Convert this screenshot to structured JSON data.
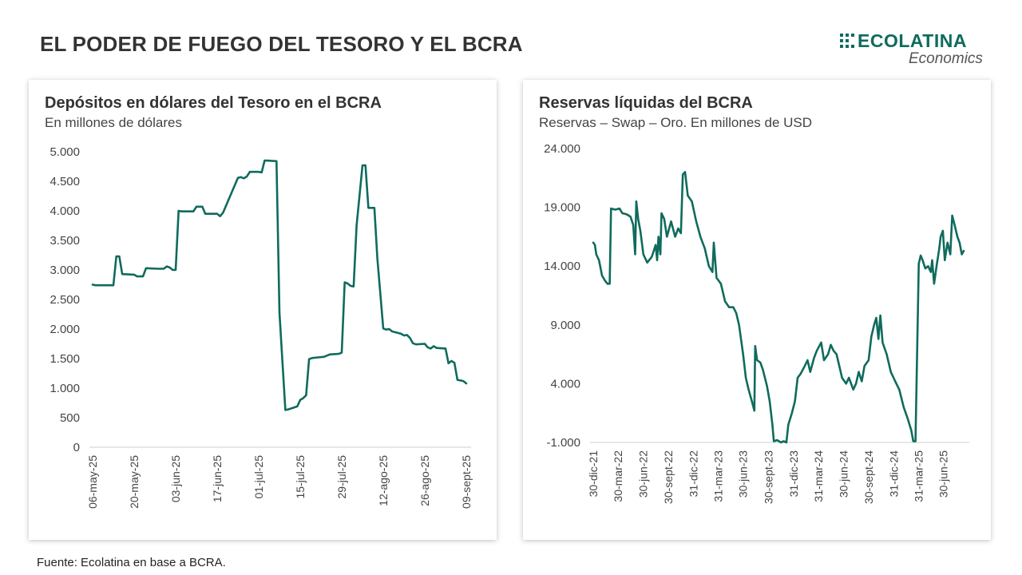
{
  "page": {
    "title": "EL PODER DE FUEGO DEL TESORO Y EL BCRA",
    "source": "Fuente: Ecolatina en base a BCRA."
  },
  "logo": {
    "name": "ECOLATINA",
    "tagline": "Economics",
    "color": "#0f6b5d"
  },
  "chart_data": [
    {
      "type": "line",
      "title": "Depósitos en dólares del Tesoro en el BCRA",
      "subtitle": "En millones de dólares",
      "color": "#0f6b5d",
      "ylim": [
        0,
        5000
      ],
      "yticks": [
        0,
        500,
        1000,
        1500,
        2000,
        2500,
        3000,
        3500,
        4000,
        4500,
        5000
      ],
      "ytick_labels": [
        "0",
        "500",
        "1.000",
        "1.500",
        "2.000",
        "2.500",
        "3.000",
        "3.500",
        "4.000",
        "4.500",
        "5.000"
      ],
      "x_start": "2025-05-06",
      "x_end": "2025-09-09",
      "xticks": [
        "2025-05-06",
        "2025-05-20",
        "2025-06-03",
        "2025-06-17",
        "2025-07-01",
        "2025-07-15",
        "2025-07-29",
        "2025-08-12",
        "2025-08-26",
        "2025-09-09"
      ],
      "xtick_labels": [
        "06-may-25",
        "20-may-25",
        "03-jun-25",
        "17-jun-25",
        "01-jul-25",
        "15-jul-25",
        "29-jul-25",
        "12-ago-25",
        "26-ago-25",
        "09-sept-25"
      ],
      "grid": false,
      "series": [
        {
          "points": [
            [
              "2025-05-06",
              2750
            ],
            [
              "2025-05-07",
              2740
            ],
            [
              "2025-05-13",
              2740
            ],
            [
              "2025-05-14",
              3230
            ],
            [
              "2025-05-15",
              3230
            ],
            [
              "2025-05-16",
              2930
            ],
            [
              "2025-05-20",
              2920
            ],
            [
              "2025-05-21",
              2890
            ],
            [
              "2025-05-23",
              2890
            ],
            [
              "2025-05-24",
              3030
            ],
            [
              "2025-05-28",
              3020
            ],
            [
              "2025-05-30",
              3020
            ],
            [
              "2025-05-31",
              3060
            ],
            [
              "2025-06-01",
              3040
            ],
            [
              "2025-06-02",
              3000
            ],
            [
              "2025-06-03",
              3000
            ],
            [
              "2025-06-04",
              4000
            ],
            [
              "2025-06-05",
              3990
            ],
            [
              "2025-06-09",
              3990
            ],
            [
              "2025-06-10",
              4070
            ],
            [
              "2025-06-12",
              4070
            ],
            [
              "2025-06-13",
              3950
            ],
            [
              "2025-06-17",
              3950
            ],
            [
              "2025-06-18",
              3910
            ],
            [
              "2025-06-19",
              3970
            ],
            [
              "2025-06-24",
              4560
            ],
            [
              "2025-06-25",
              4570
            ],
            [
              "2025-06-26",
              4550
            ],
            [
              "2025-06-27",
              4580
            ],
            [
              "2025-06-28",
              4660
            ],
            [
              "2025-07-01",
              4660
            ],
            [
              "2025-07-02",
              4650
            ],
            [
              "2025-07-03",
              4850
            ],
            [
              "2025-07-04",
              4850
            ],
            [
              "2025-07-07",
              4840
            ],
            [
              "2025-07-08",
              2280
            ],
            [
              "2025-07-10",
              630
            ],
            [
              "2025-07-11",
              640
            ],
            [
              "2025-07-14",
              690
            ],
            [
              "2025-07-15",
              800
            ],
            [
              "2025-07-16",
              830
            ],
            [
              "2025-07-17",
              880
            ],
            [
              "2025-07-18",
              1490
            ],
            [
              "2025-07-19",
              1510
            ],
            [
              "2025-07-21",
              1520
            ],
            [
              "2025-07-23",
              1530
            ],
            [
              "2025-07-25",
              1570
            ],
            [
              "2025-07-28",
              1580
            ],
            [
              "2025-07-29",
              1600
            ],
            [
              "2025-07-30",
              2790
            ],
            [
              "2025-07-31",
              2770
            ],
            [
              "2025-08-01",
              2730
            ],
            [
              "2025-08-02",
              2720
            ],
            [
              "2025-08-03",
              3750
            ],
            [
              "2025-08-05",
              4770
            ],
            [
              "2025-08-06",
              4770
            ],
            [
              "2025-08-07",
              4050
            ],
            [
              "2025-08-09",
              4050
            ],
            [
              "2025-08-10",
              3200
            ],
            [
              "2025-08-12",
              2010
            ],
            [
              "2025-08-13",
              1990
            ],
            [
              "2025-08-14",
              2000
            ],
            [
              "2025-08-15",
              1960
            ],
            [
              "2025-08-18",
              1920
            ],
            [
              "2025-08-19",
              1890
            ],
            [
              "2025-08-20",
              1900
            ],
            [
              "2025-08-21",
              1850
            ],
            [
              "2025-08-22",
              1760
            ],
            [
              "2025-08-23",
              1740
            ],
            [
              "2025-08-26",
              1750
            ],
            [
              "2025-08-27",
              1690
            ],
            [
              "2025-08-28",
              1670
            ],
            [
              "2025-08-29",
              1710
            ],
            [
              "2025-08-30",
              1680
            ],
            [
              "2025-09-02",
              1670
            ],
            [
              "2025-09-03",
              1420
            ],
            [
              "2025-09-04",
              1460
            ],
            [
              "2025-09-05",
              1430
            ],
            [
              "2025-09-06",
              1140
            ],
            [
              "2025-09-08",
              1120
            ],
            [
              "2025-09-09",
              1080
            ]
          ]
        }
      ]
    },
    {
      "type": "line",
      "title": "Reservas líquidas del BCRA",
      "subtitle": "Reservas – Swap – Oro. En millones de USD",
      "color": "#0f6b5d",
      "ylim": [
        -1000,
        24000
      ],
      "yticks": [
        -1000,
        4000,
        9000,
        14000,
        19000,
        24000
      ],
      "ytick_labels": [
        "-1.000",
        "4.000",
        "9.000",
        "14.000",
        "19.000",
        "24.000"
      ],
      "x_start": "2021-12-30",
      "x_end": "2025-09-15",
      "xticks": [
        "2021-12-30",
        "2022-03-30",
        "2022-06-30",
        "2022-09-30",
        "2022-12-31",
        "2023-03-31",
        "2023-06-30",
        "2023-09-30",
        "2023-12-31",
        "2024-03-31",
        "2024-06-30",
        "2024-09-30",
        "2024-12-31",
        "2025-03-31",
        "2025-06-30"
      ],
      "xtick_labels": [
        "30-dic-21",
        "30-mar-22",
        "30-jun-22",
        "30-sept-22",
        "31-dic-22",
        "31-mar-23",
        "30-jun-23",
        "30-sept-23",
        "31-dic-23",
        "31-mar-24",
        "30-jun-24",
        "30-sept-24",
        "31-dic-24",
        "31-mar-25",
        "30-jun-25"
      ],
      "grid": false,
      "series": [
        {
          "points": [
            [
              "2021-12-30",
              16000
            ],
            [
              "2022-01-05",
              15800
            ],
            [
              "2022-01-10",
              15000
            ],
            [
              "2022-01-20",
              14500
            ],
            [
              "2022-01-31",
              13200
            ],
            [
              "2022-02-10",
              12800
            ],
            [
              "2022-02-20",
              12500
            ],
            [
              "2022-02-28",
              12500
            ],
            [
              "2022-03-05",
              18900
            ],
            [
              "2022-03-20",
              18800
            ],
            [
              "2022-04-05",
              18900
            ],
            [
              "2022-04-15",
              18500
            ],
            [
              "2022-05-01",
              18400
            ],
            [
              "2022-05-15",
              18200
            ],
            [
              "2022-05-25",
              17500
            ],
            [
              "2022-06-01",
              15000
            ],
            [
              "2022-06-05",
              19500
            ],
            [
              "2022-06-12",
              18000
            ],
            [
              "2022-06-20",
              17000
            ],
            [
              "2022-07-01",
              15000
            ],
            [
              "2022-07-15",
              14300
            ],
            [
              "2022-08-01",
              14800
            ],
            [
              "2022-08-15",
              15800
            ],
            [
              "2022-08-20",
              14500
            ],
            [
              "2022-08-25",
              16500
            ],
            [
              "2022-09-01",
              15000
            ],
            [
              "2022-09-05",
              18500
            ],
            [
              "2022-09-15",
              18000
            ],
            [
              "2022-09-25",
              16500
            ],
            [
              "2022-10-10",
              17800
            ],
            [
              "2022-10-25",
              16500
            ],
            [
              "2022-11-05",
              17200
            ],
            [
              "2022-11-15",
              16800
            ],
            [
              "2022-11-22",
              21800
            ],
            [
              "2022-11-30",
              22000
            ],
            [
              "2022-12-10",
              20000
            ],
            [
              "2022-12-25",
              19500
            ],
            [
              "2023-01-10",
              17800
            ],
            [
              "2023-01-25",
              16500
            ],
            [
              "2023-02-10",
              15500
            ],
            [
              "2023-02-25",
              14000
            ],
            [
              "2023-03-10",
              13500
            ],
            [
              "2023-03-15",
              16000
            ],
            [
              "2023-03-25",
              13000
            ],
            [
              "2023-04-10",
              12500
            ],
            [
              "2023-04-25",
              11000
            ],
            [
              "2023-05-10",
              10500
            ],
            [
              "2023-05-25",
              10500
            ],
            [
              "2023-06-05",
              10000
            ],
            [
              "2023-06-15",
              9000
            ],
            [
              "2023-06-30",
              6500
            ],
            [
              "2023-07-10",
              4500
            ],
            [
              "2023-07-20",
              3500
            ],
            [
              "2023-08-01",
              2500
            ],
            [
              "2023-08-10",
              1700
            ],
            [
              "2023-08-13",
              7200
            ],
            [
              "2023-08-20",
              6000
            ],
            [
              "2023-09-01",
              5800
            ],
            [
              "2023-09-10",
              5200
            ],
            [
              "2023-09-25",
              3800
            ],
            [
              "2023-10-05",
              2500
            ],
            [
              "2023-10-15",
              500
            ],
            [
              "2023-10-20",
              -900
            ],
            [
              "2023-11-01",
              -800
            ],
            [
              "2023-11-15",
              -1000
            ],
            [
              "2023-11-25",
              -900
            ],
            [
              "2023-12-05",
              -1000
            ],
            [
              "2023-12-12",
              500
            ],
            [
              "2023-12-25",
              1500
            ],
            [
              "2024-01-05",
              2500
            ],
            [
              "2024-01-15",
              4500
            ],
            [
              "2024-01-25",
              4800
            ],
            [
              "2024-02-10",
              5500
            ],
            [
              "2024-02-20",
              6000
            ],
            [
              "2024-03-01",
              5000
            ],
            [
              "2024-03-15",
              6200
            ],
            [
              "2024-03-25",
              6800
            ],
            [
              "2024-04-10",
              7500
            ],
            [
              "2024-04-20",
              6000
            ],
            [
              "2024-05-05",
              6500
            ],
            [
              "2024-05-15",
              7300
            ],
            [
              "2024-05-25",
              6800
            ],
            [
              "2024-06-05",
              6500
            ],
            [
              "2024-06-15",
              5500
            ],
            [
              "2024-06-25",
              4500
            ],
            [
              "2024-07-10",
              4000
            ],
            [
              "2024-07-20",
              4500
            ],
            [
              "2024-08-05",
              3500
            ],
            [
              "2024-08-15",
              4000
            ],
            [
              "2024-08-25",
              5000
            ],
            [
              "2024-09-05",
              4200
            ],
            [
              "2024-09-15",
              5500
            ],
            [
              "2024-09-30",
              6000
            ],
            [
              "2024-10-10",
              8000
            ],
            [
              "2024-10-20",
              9000
            ],
            [
              "2024-10-28",
              9600
            ],
            [
              "2024-11-05",
              7800
            ],
            [
              "2024-11-12",
              9800
            ],
            [
              "2024-11-20",
              7500
            ],
            [
              "2024-12-05",
              6500
            ],
            [
              "2024-12-20",
              5000
            ],
            [
              "2025-01-05",
              4200
            ],
            [
              "2025-01-20",
              3500
            ],
            [
              "2025-02-05",
              2000
            ],
            [
              "2025-02-20",
              1000
            ],
            [
              "2025-03-05",
              0
            ],
            [
              "2025-03-12",
              -900
            ],
            [
              "2025-03-20",
              -900
            ],
            [
              "2025-04-01",
              14200
            ],
            [
              "2025-04-08",
              14900
            ],
            [
              "2025-04-15",
              14500
            ],
            [
              "2025-04-25",
              13800
            ],
            [
              "2025-05-05",
              14000
            ],
            [
              "2025-05-15",
              13500
            ],
            [
              "2025-05-20",
              14500
            ],
            [
              "2025-05-27",
              12500
            ],
            [
              "2025-06-05",
              14000
            ],
            [
              "2025-06-15",
              15500
            ],
            [
              "2025-06-20",
              16500
            ],
            [
              "2025-06-28",
              17000
            ],
            [
              "2025-07-05",
              14500
            ],
            [
              "2025-07-15",
              16000
            ],
            [
              "2025-07-25",
              15000
            ],
            [
              "2025-08-01",
              18300
            ],
            [
              "2025-08-10",
              17500
            ],
            [
              "2025-08-20",
              16500
            ],
            [
              "2025-08-28",
              16000
            ],
            [
              "2025-09-05",
              15000
            ],
            [
              "2025-09-12",
              15300
            ]
          ]
        }
      ]
    }
  ]
}
